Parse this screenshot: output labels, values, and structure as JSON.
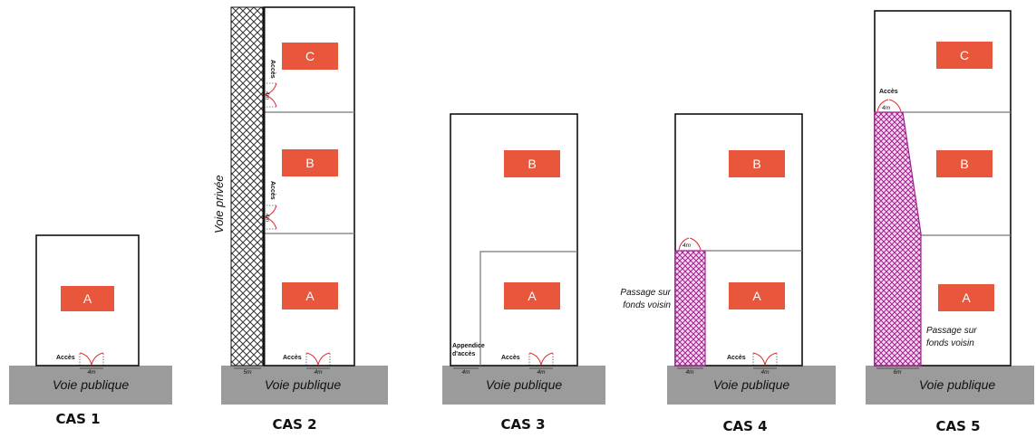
{
  "colors": {
    "road": "#9b9b9b",
    "lot_box": "#e8563b",
    "door_arc": "#e0323b",
    "passage_hatch": "#a3208f",
    "private_road_hatch": "#333333"
  },
  "road_label": "Voie publique",
  "lot_labels": {
    "a": "A",
    "b": "B",
    "c": "C"
  },
  "access_label": "Accès",
  "width_4m": "4m",
  "cases": {
    "cas1": {
      "label": "CAS 1"
    },
    "cas2": {
      "label": "CAS 2",
      "private_road": "Voie privée",
      "private_width": "5m"
    },
    "cas3": {
      "label": "CAS 3",
      "appendix_line1": "Appendice",
      "appendix_line2": "d'accès"
    },
    "cas4": {
      "label": "CAS 4",
      "passage_line1": "Passage sur",
      "passage_line2": "fonds voisin"
    },
    "cas5": {
      "label": "CAS 5",
      "passage_line1": "Passage sur",
      "passage_line2": "fonds voisin",
      "passage_width": "6m"
    }
  }
}
